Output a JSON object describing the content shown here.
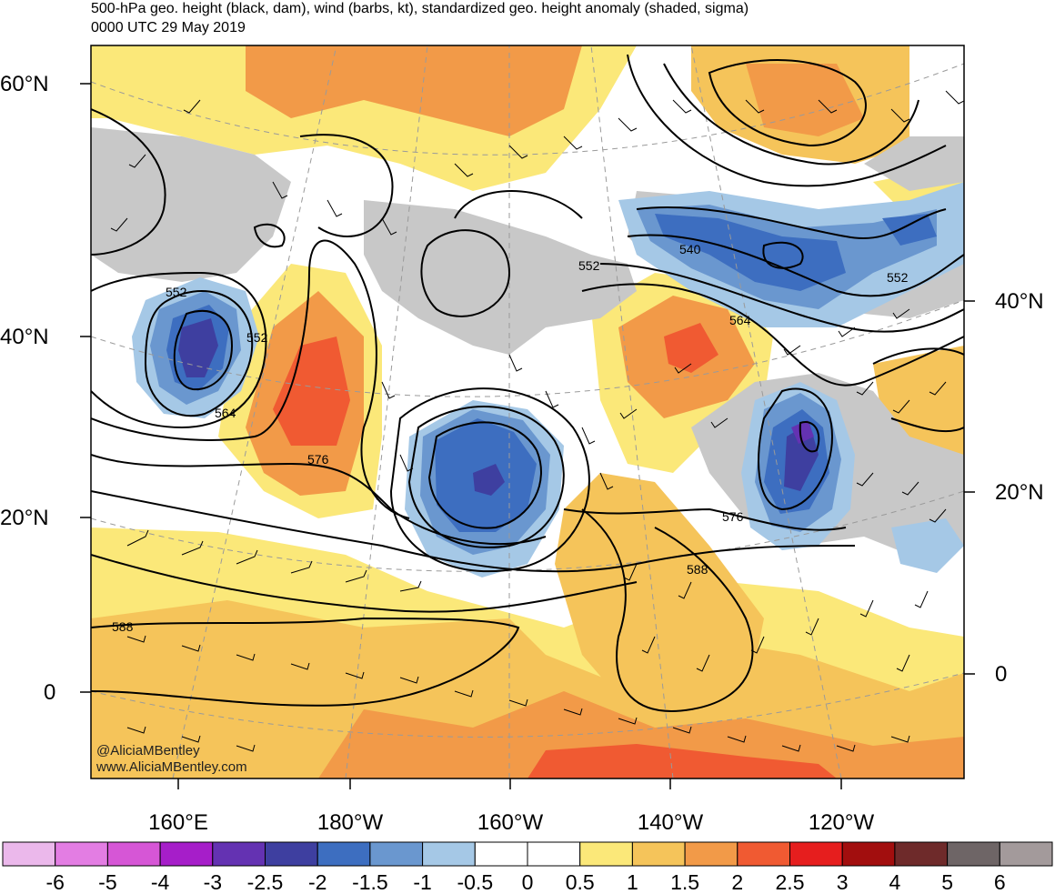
{
  "title_line1": "500-hPa geo. height (black, dam), wind (barbs, kt), standardized geo. height anomaly (shaded, sigma)",
  "title_line2": "0000 UTC 29 May 2019",
  "left_lat_labels": [
    "60°N",
    "40°N",
    "20°N",
    "0"
  ],
  "right_lat_labels": [
    "40°N",
    "20°N",
    "0"
  ],
  "lon_labels": [
    "160°E",
    "180°W",
    "160°W",
    "140°W",
    "120°W"
  ],
  "contour_labels": [
    "552",
    "552",
    "564",
    "576",
    "540",
    "552",
    "552",
    "564",
    "576",
    "588",
    "588"
  ],
  "credit_line1": "@AliciaMBentley",
  "credit_line2": "www.AliciaMBentley.com",
  "colorbar": {
    "colors": [
      "#ebb8eb",
      "#e37de3",
      "#d656d6",
      "#a61ec9",
      "#6432b2",
      "#3e3fa0",
      "#3d6ec0",
      "#6a97cf",
      "#a5c8e6",
      "#ffffff",
      "#ffffff",
      "#fbe879",
      "#f5c45a",
      "#f29a48",
      "#f05a32",
      "#e61e1e",
      "#a20e0e",
      "#6e2a2a",
      "#6e6566",
      "#a39a9b"
    ],
    "labels": [
      "-6",
      "-5",
      "-4",
      "-3",
      "-2.5",
      "-2",
      "-1.5",
      "-1",
      "-0.5",
      "0",
      "0.5",
      "1",
      "1.5",
      "2",
      "2.5",
      "3",
      "4",
      "5",
      "6"
    ]
  },
  "land_color": "#c8c8c8",
  "contour_color": "#000000"
}
